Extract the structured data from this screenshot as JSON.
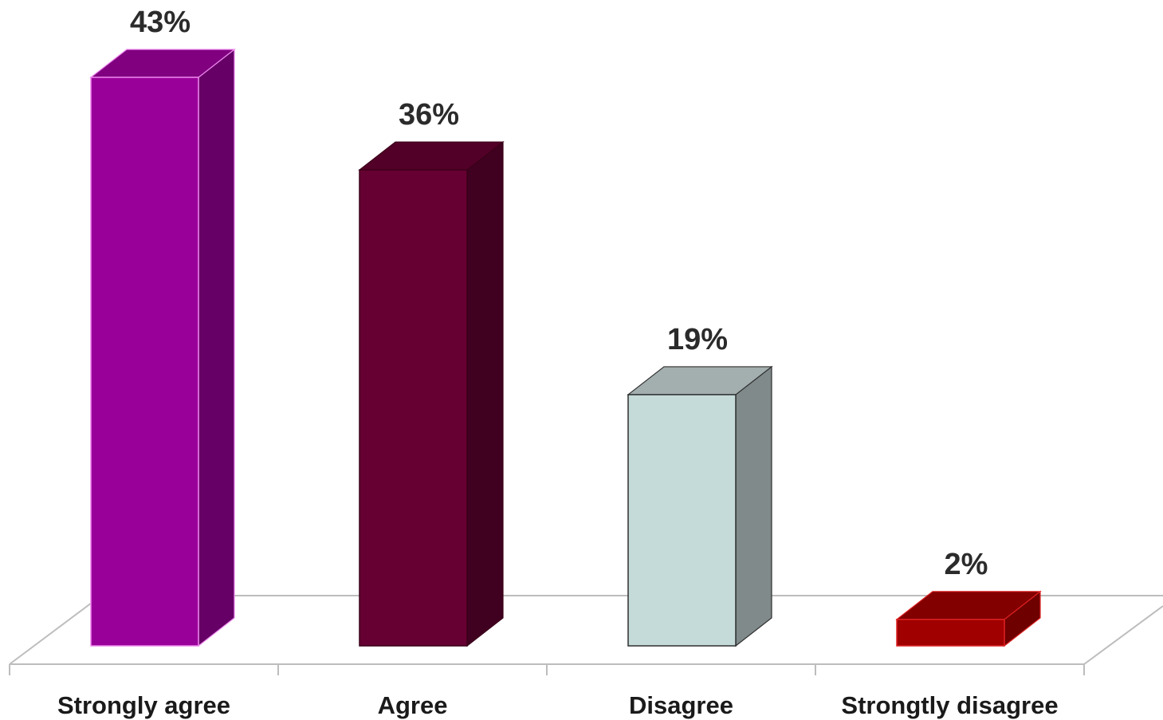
{
  "chart_data": {
    "type": "bar",
    "title": "",
    "xlabel": "",
    "ylabel": "",
    "categories": [
      "Strongly agree",
      "Agree",
      "Disagree",
      "Strongtly disagree"
    ],
    "values": [
      43,
      36,
      19,
      2
    ],
    "value_labels": [
      "43%",
      "36%",
      "19%",
      "2%"
    ],
    "unit": "%",
    "ylim": [
      0,
      43
    ],
    "grid": false,
    "legend": "none",
    "style": "3d-column",
    "colors": [
      {
        "front": "#990099",
        "side": "#660066",
        "top": "#800080",
        "edge": "#ee88ee"
      },
      {
        "front": "#660033",
        "side": "#400020",
        "top": "#520028",
        "edge": "#3a0018"
      },
      {
        "front": "#c5dbd9",
        "side": "#808a8a",
        "top": "#a3aeae",
        "edge": "#2f2f2f"
      },
      {
        "front": "#a00000",
        "side": "#6e0000",
        "top": "#820000",
        "edge": "#dd2222"
      }
    ],
    "floor_color": "#bdbdbd"
  }
}
